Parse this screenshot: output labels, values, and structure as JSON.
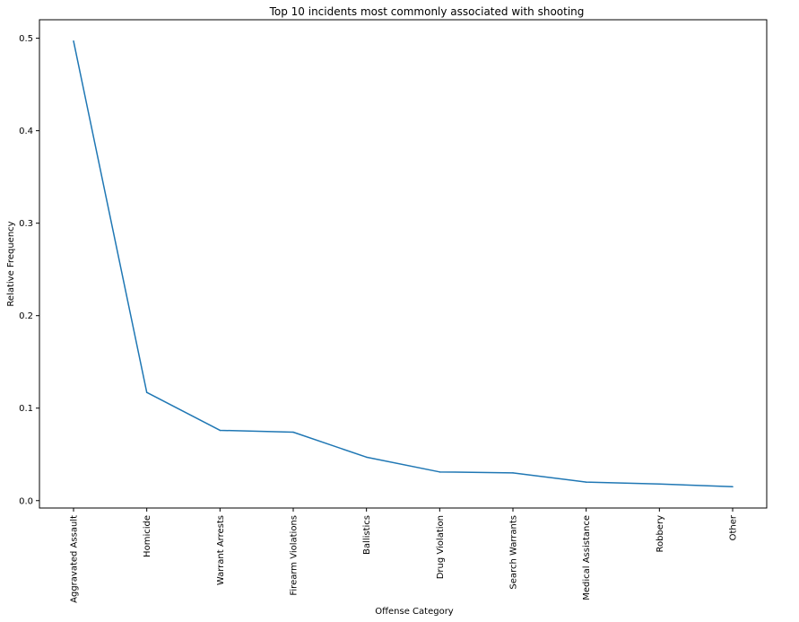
{
  "chart_data": {
    "type": "line",
    "title": "Top 10 incidents most commonly associated with shooting",
    "xlabel": "Offense Category",
    "ylabel": "Relative Frequency",
    "categories": [
      "Aggravated Assault",
      "Homicide",
      "Warrant Arrests",
      "Firearm Violations",
      "Ballistics",
      "Drug Violation",
      "Search Warrants",
      "Medical Assistance",
      "Robbery",
      "Other"
    ],
    "values": [
      0.497,
      0.117,
      0.076,
      0.074,
      0.047,
      0.031,
      0.03,
      0.02,
      0.018,
      0.015
    ],
    "yticks": [
      "0.0",
      "0.1",
      "0.2",
      "0.3",
      "0.4",
      "0.5"
    ],
    "ylim": [
      -0.008,
      0.52
    ],
    "grid": false,
    "colors": {
      "line": "#1f77b4",
      "axes": "#000000"
    }
  }
}
